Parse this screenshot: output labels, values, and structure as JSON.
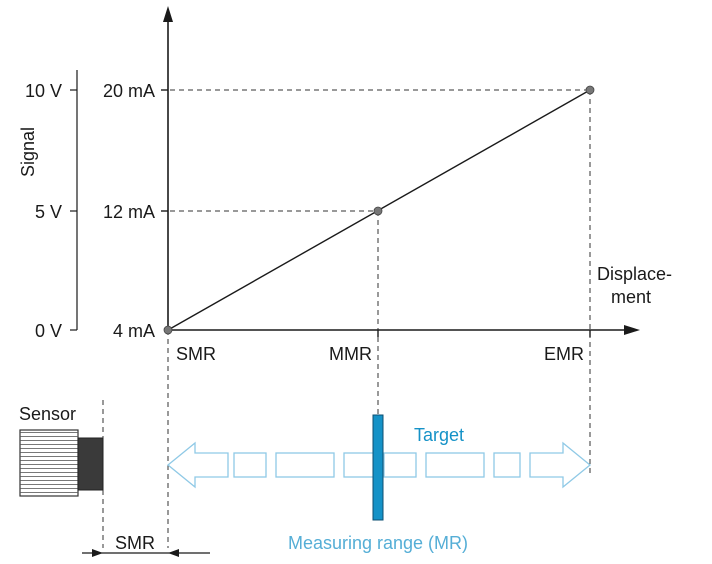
{
  "diagram": {
    "y_axis_title": "Signal",
    "voltage_ticks": [
      "10 V",
      "5 V",
      "0 V"
    ],
    "current_ticks": [
      "20 mA",
      "12 mA",
      "4 mA"
    ],
    "x_axis_title_line1": "Displace-",
    "x_axis_title_line2": "ment",
    "x_ticks": [
      "SMR",
      "MMR",
      "EMR"
    ],
    "sensor_label": "Sensor",
    "target_label": "Target",
    "measuring_range_label": "Measuring range (MR)",
    "smr_dimension_label": "SMR"
  },
  "colors": {
    "line": "#1a1a1a",
    "dashed": "#333333",
    "point": "#777777",
    "target_fill": "#1592c7",
    "range_arrow": "#8fc9e6",
    "range_text": "#55aed6"
  }
}
